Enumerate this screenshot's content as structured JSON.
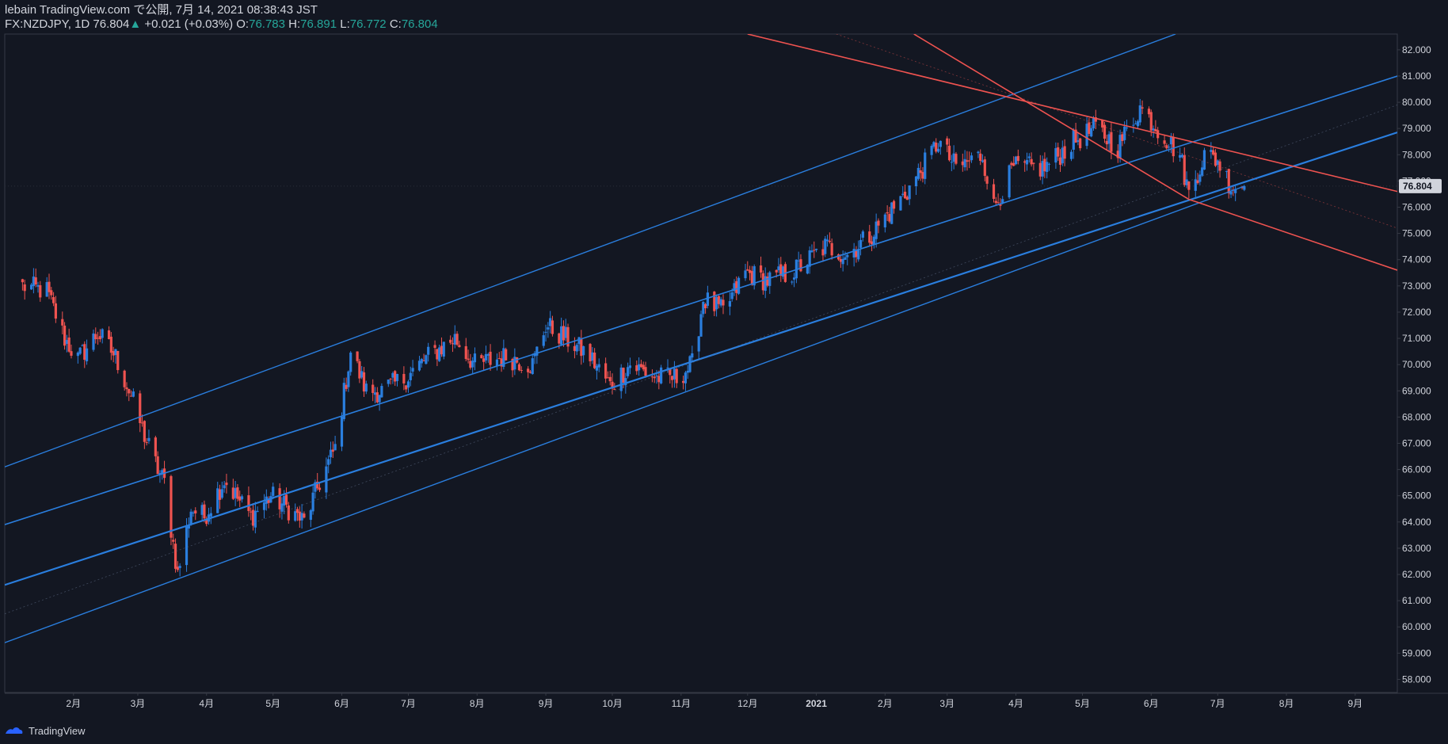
{
  "header": {
    "line1": "lebain TradingView.com で公開, 7月 14, 2021 08:38:43 JST",
    "symbol": "FX:NZDJPY, 1D",
    "last": "76.804",
    "change": "+0.021 (+0.03%)",
    "o_label": "O:",
    "o": "76.783",
    "h_label": "H:",
    "h": "76.891",
    "l_label": "L:",
    "l": "76.772",
    "c_label": "C:",
    "c": "76.804"
  },
  "footer": {
    "brand": "TradingView"
  },
  "colors": {
    "background": "#131722",
    "up": "#2a7ede",
    "down": "#ef5350",
    "channel": "#2a7ede",
    "resistance": "#ef5350",
    "text": "#d1d4dc",
    "price_badge": "#d1d4dc"
  },
  "chart_data": {
    "type": "candlestick",
    "symbol": "FX:NZDJPY",
    "interval": "1D",
    "ylim": [
      57.5,
      82.6
    ],
    "y_ticks": [
      "82.000",
      "81.000",
      "80.000",
      "79.000",
      "78.000",
      "77.000",
      "76.000",
      "75.000",
      "74.000",
      "73.000",
      "72.000",
      "71.000",
      "70.000",
      "69.000",
      "68.000",
      "67.000",
      "66.000",
      "65.000",
      "64.000",
      "63.000",
      "62.000",
      "61.000",
      "60.000",
      "59.000",
      "58.000"
    ],
    "x_ticks": [
      "2月",
      "3月",
      "4月",
      "5月",
      "6月",
      "7月",
      "8月",
      "9月",
      "10月",
      "11月",
      "12月",
      "2021",
      "2月",
      "3月",
      "4月",
      "5月",
      "6月",
      "7月",
      "8月",
      "9月"
    ],
    "current_price": "76.804",
    "close_path": [
      [
        "2020-01-09",
        73.0
      ],
      [
        "2020-01-20",
        72.8
      ],
      [
        "2020-01-28",
        71.0
      ],
      [
        "2020-02-03",
        70.2
      ],
      [
        "2020-02-12",
        71.2
      ],
      [
        "2020-02-20",
        70.3
      ],
      [
        "2020-02-27",
        68.8
      ],
      [
        "2020-03-04",
        67.3
      ],
      [
        "2020-03-10",
        66.0
      ],
      [
        "2020-03-13",
        65.5
      ],
      [
        "2020-03-19",
        62.0
      ],
      [
        "2020-03-25",
        64.5
      ],
      [
        "2020-03-31",
        64.2
      ],
      [
        "2020-04-09",
        65.6
      ],
      [
        "2020-04-21",
        64.2
      ],
      [
        "2020-04-30",
        65.0
      ],
      [
        "2020-05-08",
        64.5
      ],
      [
        "2020-05-15",
        64.0
      ],
      [
        "2020-05-22",
        65.5
      ],
      [
        "2020-05-29",
        66.8
      ],
      [
        "2020-06-05",
        70.5
      ],
      [
        "2020-06-12",
        69.0
      ],
      [
        "2020-06-19",
        69.0
      ],
      [
        "2020-06-30",
        69.5
      ],
      [
        "2020-07-10",
        70.3
      ],
      [
        "2020-07-22",
        71.0
      ],
      [
        "2020-07-31",
        70.0
      ],
      [
        "2020-08-14",
        70.3
      ],
      [
        "2020-08-26",
        70.0
      ],
      [
        "2020-09-01",
        71.5
      ],
      [
        "2020-09-10",
        71.0
      ],
      [
        "2020-09-21",
        70.3
      ],
      [
        "2020-09-30",
        69.2
      ],
      [
        "2020-10-09",
        70.0
      ],
      [
        "2020-10-21",
        69.5
      ],
      [
        "2020-10-30",
        69.5
      ],
      [
        "2020-11-06",
        70.0
      ],
      [
        "2020-11-11",
        72.5
      ],
      [
        "2020-11-20",
        72.0
      ],
      [
        "2020-11-30",
        73.5
      ],
      [
        "2020-12-10",
        73.2
      ],
      [
        "2020-12-21",
        73.5
      ],
      [
        "2021-01-05",
        74.5
      ],
      [
        "2021-01-15",
        74.2
      ],
      [
        "2021-01-26",
        75.0
      ],
      [
        "2021-02-10",
        76.5
      ],
      [
        "2021-02-18",
        77.5
      ],
      [
        "2021-02-25",
        78.5
      ],
      [
        "2021-03-05",
        77.5
      ],
      [
        "2021-03-17",
        78.0
      ],
      [
        "2021-03-22",
        76.0
      ],
      [
        "2021-03-31",
        77.5
      ],
      [
        "2021-04-14",
        77.5
      ],
      [
        "2021-04-27",
        78.5
      ],
      [
        "2021-05-07",
        79.0
      ],
      [
        "2021-05-17",
        78.3
      ],
      [
        "2021-05-27",
        79.8
      ],
      [
        "2021-06-04",
        79.0
      ],
      [
        "2021-06-14",
        78.0
      ],
      [
        "2021-06-18",
        76.5
      ],
      [
        "2021-06-25",
        78.0
      ],
      [
        "2021-07-01",
        77.8
      ],
      [
        "2021-07-07",
        76.8
      ],
      [
        "2021-07-13",
        76.804
      ]
    ]
  }
}
